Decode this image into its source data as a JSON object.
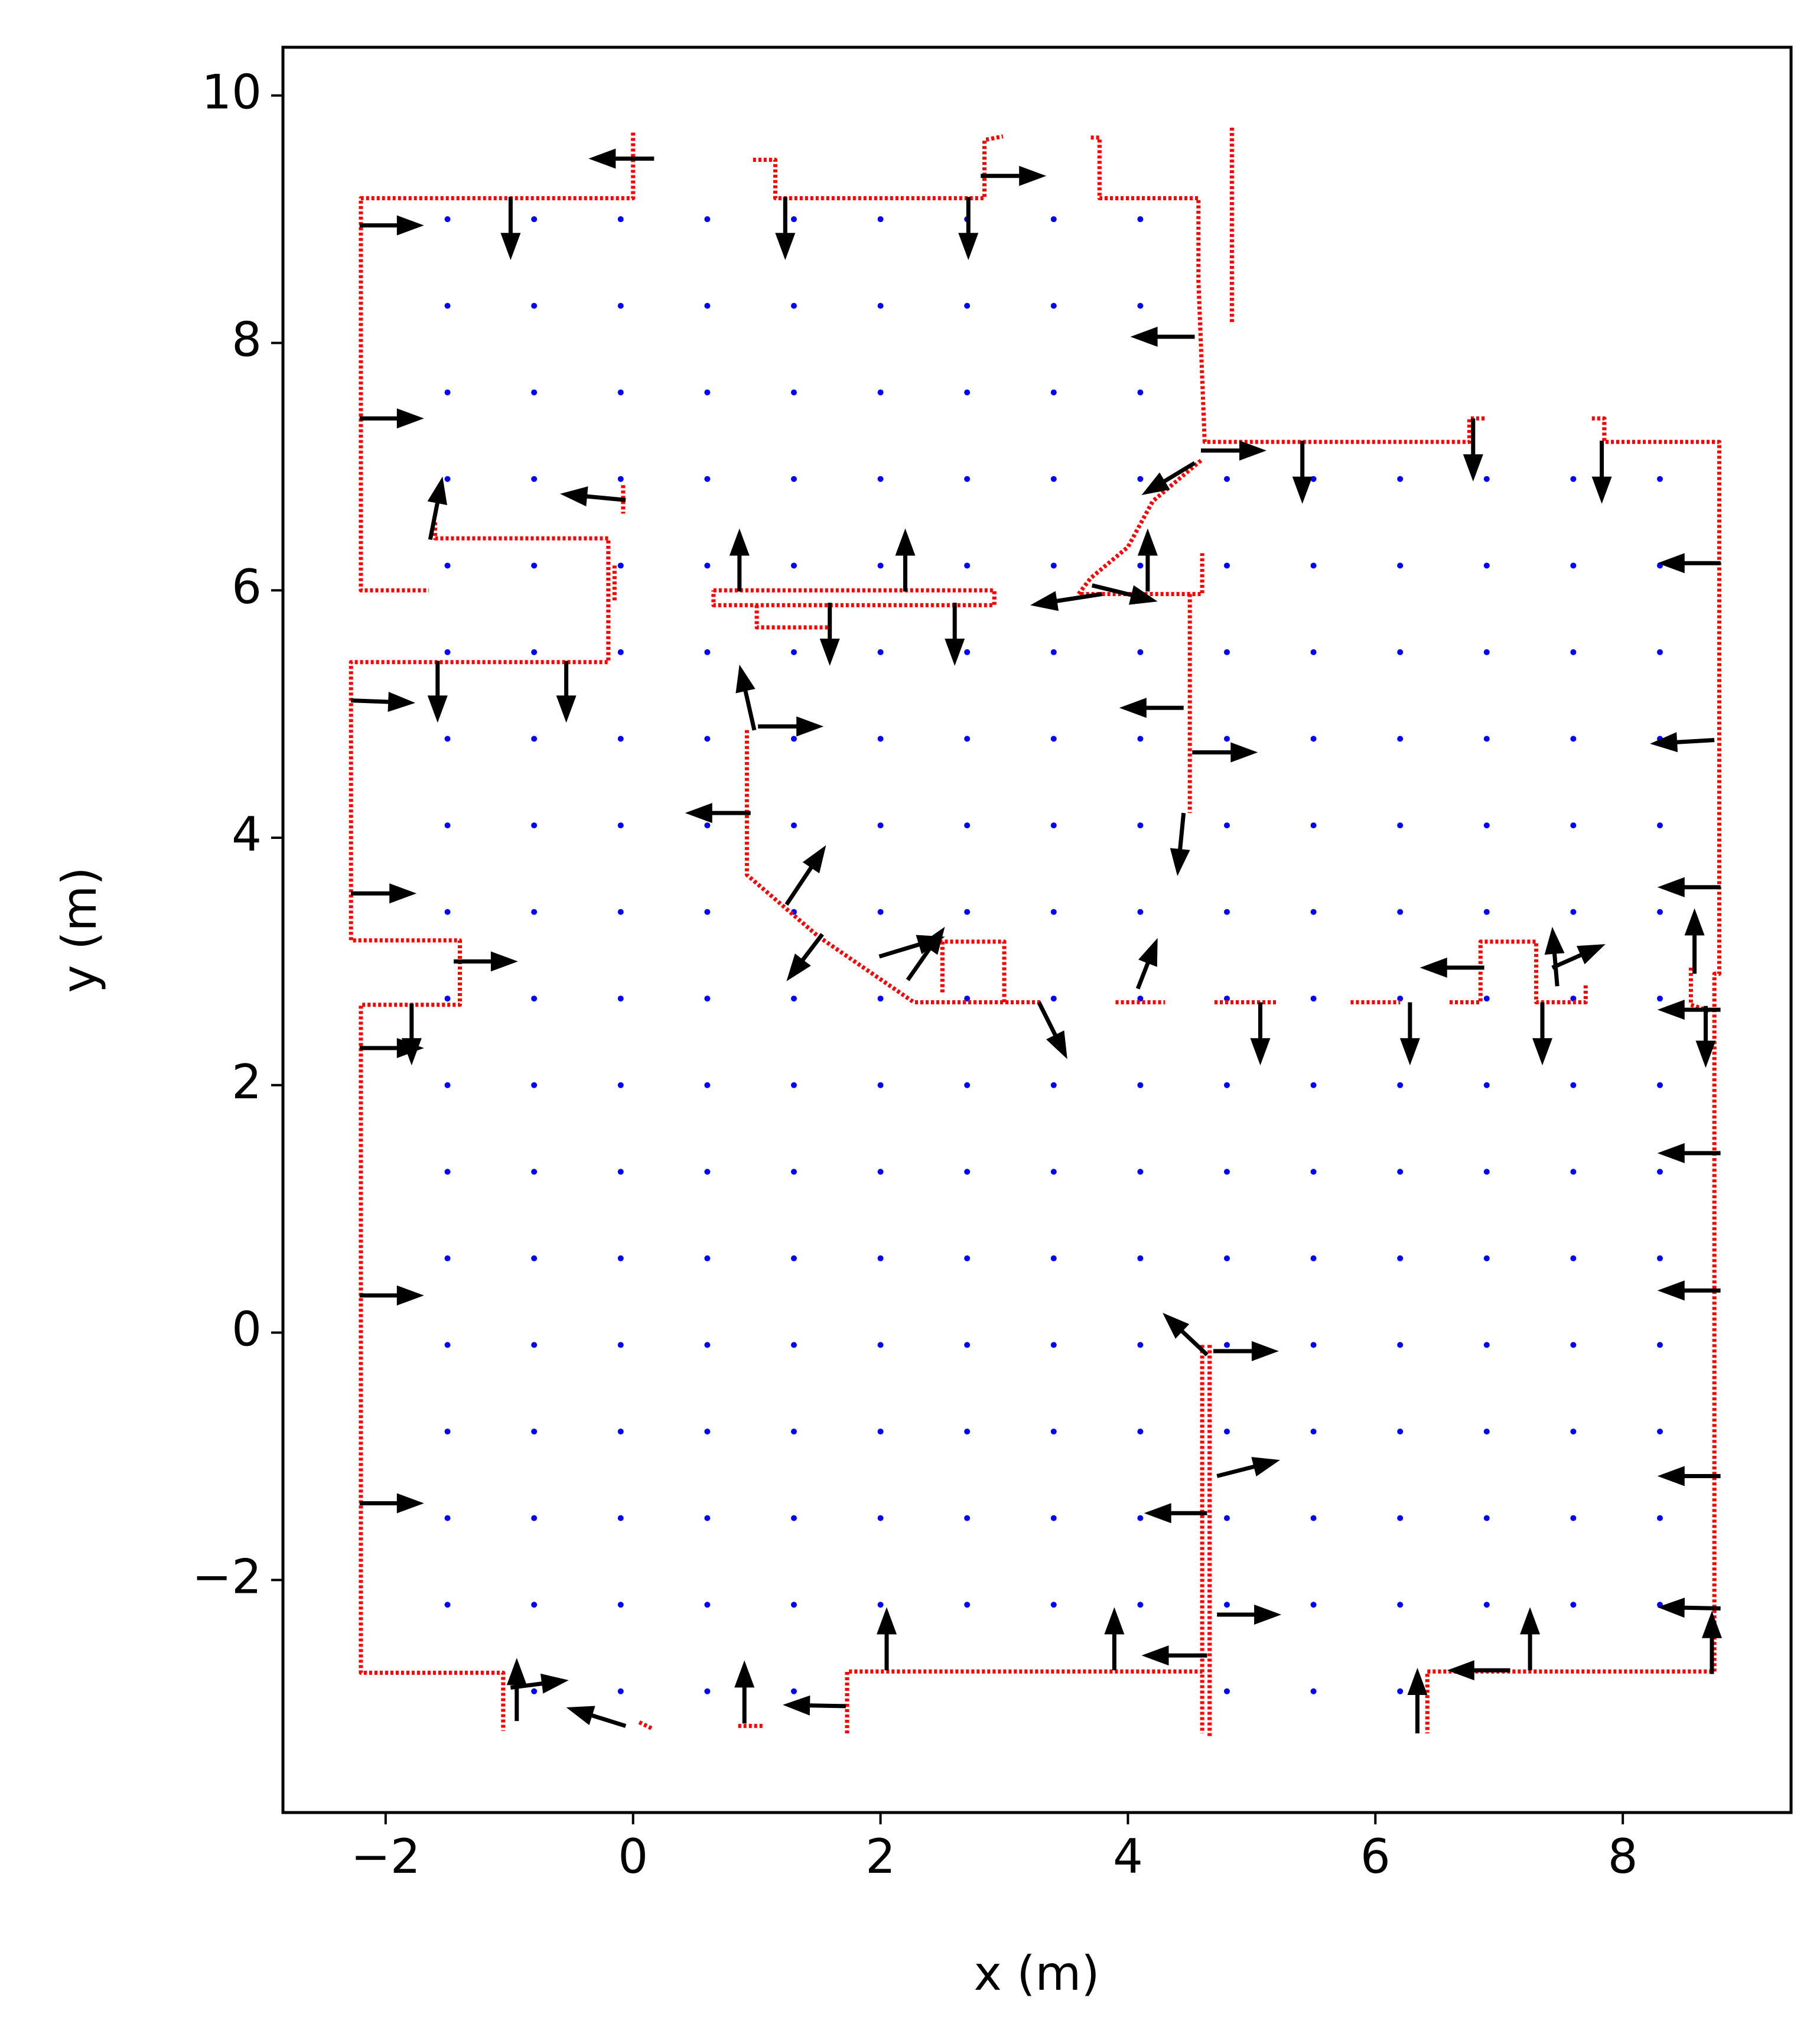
{
  "chart_data": {
    "type": "scatter",
    "xlabel": "x (m)",
    "ylabel": "y (m)",
    "xlim": [
      -2.83,
      9.36
    ],
    "ylim": [
      -3.88,
      10.39
    ],
    "xticks": [
      {
        "value": -2,
        "label": "−2"
      },
      0,
      2,
      4,
      6,
      8
    ],
    "yticks": [
      {
        "value": -2,
        "label": "−2"
      },
      0,
      2,
      4,
      6,
      8,
      10
    ],
    "series": [
      {
        "type": "grid",
        "color": "#0000ff",
        "rows": [
          {
            "y": 9.0,
            "x": [
              -1.5,
              -0.8,
              -0.1,
              0.6,
              1.3,
              2.0,
              2.7,
              3.4,
              4.1
            ]
          },
          {
            "y": 8.3,
            "x": [
              -1.5,
              -0.8,
              -0.1,
              0.6,
              1.3,
              2.0,
              2.7,
              3.4,
              4.1
            ]
          },
          {
            "y": 7.6,
            "x": [
              -1.5,
              -0.8,
              -0.1,
              0.6,
              1.3,
              2.0,
              2.7,
              3.4,
              4.1
            ]
          },
          {
            "y": 6.9,
            "x": [
              -1.5,
              -0.8,
              -0.1,
              0.6,
              1.3,
              2.0,
              2.7,
              3.4,
              4.1,
              4.8,
              5.5,
              6.2,
              6.9,
              7.6,
              8.3
            ]
          },
          {
            "y": 6.2,
            "x": [
              -1.5,
              -0.8,
              -0.1,
              0.6,
              1.3,
              2.0,
              2.7,
              3.4,
              4.1,
              4.8,
              5.5,
              6.2,
              6.9,
              7.6,
              8.3
            ]
          },
          {
            "y": 5.5,
            "x": [
              -1.5,
              -0.8,
              -0.1,
              0.6,
              1.3,
              2.0,
              2.7,
              3.4,
              4.1,
              4.8,
              5.5,
              6.2,
              6.9,
              7.6,
              8.3
            ]
          },
          {
            "y": 4.8,
            "x": [
              -1.5,
              -0.8,
              -0.1,
              0.6,
              1.3,
              2.0,
              2.7,
              3.4,
              4.1,
              4.8,
              5.5,
              6.2,
              6.9,
              7.6,
              8.3
            ]
          },
          {
            "y": 4.1,
            "x": [
              -1.5,
              -0.8,
              -0.1,
              0.6,
              1.3,
              2.0,
              2.7,
              3.4,
              4.1,
              4.8,
              5.5,
              6.2,
              6.9,
              7.6,
              8.3
            ]
          },
          {
            "y": 3.4,
            "x": [
              -1.5,
              -0.8,
              -0.1,
              0.6,
              1.3,
              2.0,
              2.7,
              3.4,
              4.1,
              4.8,
              5.5,
              6.2,
              6.9,
              7.6,
              8.3
            ]
          },
          {
            "y": 2.7,
            "x": [
              -1.5,
              -0.8,
              -0.1,
              0.6,
              1.3,
              2.0,
              2.7,
              3.4,
              4.1,
              4.8,
              5.5,
              6.2,
              6.9,
              7.6,
              8.3
            ]
          },
          {
            "y": 2.0,
            "x": [
              -1.5,
              -0.8,
              -0.1,
              0.6,
              1.3,
              2.0,
              2.7,
              3.4,
              4.1,
              4.8,
              5.5,
              6.2,
              6.9,
              7.6,
              8.3
            ]
          },
          {
            "y": 1.3,
            "x": [
              -1.5,
              -0.8,
              -0.1,
              0.6,
              1.3,
              2.0,
              2.7,
              3.4,
              4.1,
              4.8,
              5.5,
              6.2,
              6.9,
              7.6,
              8.3
            ]
          },
          {
            "y": 0.6,
            "x": [
              -1.5,
              -0.8,
              -0.1,
              0.6,
              1.3,
              2.0,
              2.7,
              3.4,
              4.1,
              4.8,
              5.5,
              6.2,
              6.9,
              7.6,
              8.3
            ]
          },
          {
            "y": -0.1,
            "x": [
              -1.5,
              -0.8,
              -0.1,
              0.6,
              1.3,
              2.0,
              2.7,
              3.4,
              4.1,
              4.8,
              5.5,
              6.2,
              6.9,
              7.6,
              8.3
            ]
          },
          {
            "y": -0.8,
            "x": [
              -1.5,
              -0.8,
              -0.1,
              0.6,
              1.3,
              2.0,
              2.7,
              3.4,
              4.1,
              4.8,
              5.5,
              6.2,
              6.9,
              7.6,
              8.3
            ]
          },
          {
            "y": -1.5,
            "x": [
              -1.5,
              -0.8,
              -0.1,
              0.6,
              1.3,
              2.0,
              2.7,
              3.4,
              4.1,
              4.8,
              5.5,
              6.2,
              6.9,
              7.6,
              8.3
            ]
          },
          {
            "y": -2.2,
            "x": [
              -1.5,
              -0.8,
              -0.1,
              0.6,
              1.3,
              2.0,
              2.7,
              3.4,
              4.1,
              4.8,
              5.5,
              6.2,
              6.9,
              7.6,
              8.3
            ]
          },
          {
            "y": -2.9,
            "x": [
              -0.8,
              -0.1,
              0.6,
              1.3,
              4.8,
              5.5,
              6.2
            ]
          }
        ]
      },
      {
        "type": "line",
        "color": "#ff0000",
        "x": [
          0.0,
          0.0,
          -2.2,
          -2.2,
          -1.65,
          null,
          -1.6,
          -1.6,
          -0.2,
          -0.2,
          -2.28,
          -2.28,
          -1.4,
          -1.4,
          -2.2,
          -2.2,
          -1.05,
          -1.05,
          null,
          -0.08,
          -0.08,
          null,
          -0.15,
          -0.15,
          null,
          0.97,
          1.15,
          1.15,
          2.84,
          2.84,
          2.99,
          null,
          3.7,
          3.77,
          3.77,
          4.57,
          4.57,
          4.62,
          6.76,
          6.76,
          6.9,
          null,
          7.75,
          7.85,
          7.85,
          8.78,
          8.78,
          8.74,
          8.74,
          6.42,
          6.42,
          null,
          4.84,
          4.84,
          null,
          4.59,
          4.2,
          4.0,
          3.7,
          3.6,
          4.6,
          4.6,
          null,
          4.5,
          4.5,
          null,
          0.65,
          2.92,
          2.92,
          0.65,
          0.65,
          null,
          1.0,
          1.0,
          1.6,
          null,
          0.92,
          0.92,
          1.5,
          2.27,
          3.3,
          null,
          2.5,
          2.5,
          3.0,
          3.0,
          null,
          3.9,
          4.3,
          null,
          4.7,
          5.2,
          null,
          5.8,
          6.2,
          null,
          6.6,
          6.85,
          6.85,
          7.3,
          7.3,
          7.7,
          7.7,
          null,
          8.55,
          8.55,
          8.7,
          null,
          1.73,
          1.73,
          4.6,
          null,
          4.6,
          4.6,
          null,
          4.66,
          4.66,
          null,
          0.05,
          0.15,
          null,
          0.85,
          1.05
        ],
        "y": [
          9.7,
          9.17,
          9.17,
          6.0,
          6.0,
          null,
          6.55,
          6.42,
          6.42,
          5.42,
          5.42,
          3.17,
          3.17,
          2.65,
          2.65,
          -2.75,
          -2.75,
          -3.22,
          null,
          6.85,
          6.62,
          null,
          6.2,
          5.9,
          null,
          9.48,
          9.48,
          9.17,
          9.17,
          9.64,
          9.67,
          null,
          9.66,
          9.66,
          9.17,
          9.17,
          8.5,
          7.2,
          7.2,
          7.39,
          7.39,
          null,
          7.39,
          7.39,
          7.2,
          7.2,
          2.9,
          2.9,
          -2.74,
          -2.74,
          -3.24,
          null,
          9.74,
          8.16,
          null,
          7.05,
          6.72,
          6.35,
          6.1,
          5.97,
          5.97,
          6.3,
          null,
          5.97,
          4.2,
          null,
          6.0,
          6.0,
          5.88,
          5.88,
          6.0,
          null,
          5.88,
          5.7,
          5.7,
          null,
          4.87,
          3.7,
          3.2,
          2.67,
          2.67,
          null,
          2.75,
          3.16,
          3.16,
          2.67,
          null,
          2.67,
          2.67,
          null,
          2.67,
          2.67,
          null,
          2.67,
          2.67,
          null,
          2.67,
          2.67,
          3.16,
          3.16,
          2.67,
          2.67,
          2.82,
          null,
          2.95,
          2.65,
          2.6,
          null,
          -3.24,
          -2.74,
          -2.74,
          null,
          -0.1,
          -3.24,
          null,
          -0.1,
          -3.28,
          null,
          -3.15,
          -3.2,
          null,
          -3.18,
          -3.18
        ]
      },
      {
        "type": "quiver",
        "color": "#000000",
        "x": [
          -2.21,
          -0.99,
          0.17,
          1.23,
          2.71,
          2.81,
          4.54,
          -2.21,
          4.59,
          4.54,
          5.41,
          6.79,
          7.83,
          -0.06,
          -1.64,
          0.86,
          2.2,
          4.16,
          8.79,
          1.59,
          2.6,
          3.79,
          3.71,
          -2.28,
          -1.58,
          -0.54,
          0.98,
          1.01,
          4.45,
          4.52,
          0.95,
          4.45,
          8.74,
          -2.28,
          1.24,
          1.53,
          8.79,
          8.58,
          2.22,
          1.99,
          -1.45,
          6.88,
          7.43,
          7.47,
          4.08,
          3.28,
          5.07,
          6.28,
          7.35,
          -1.79,
          -2.21,
          8.79,
          8.67,
          8.79,
          -2.21,
          8.79,
          4.69,
          4.64,
          4.72,
          4.64,
          8.79,
          -2.21,
          4.72,
          8.79,
          4.64,
          2.05,
          3.89,
          7.25,
          7.09,
          8.72,
          -0.94,
          -0.99,
          -0.06,
          0.9,
          1.72,
          6.34
        ],
        "y": [
          8.95,
          9.18,
          9.49,
          9.18,
          9.18,
          9.35,
          8.05,
          7.39,
          7.13,
          7.03,
          7.21,
          7.39,
          7.21,
          6.73,
          6.41,
          5.99,
          5.99,
          5.99,
          6.22,
          5.9,
          5.9,
          5.97,
          6.04,
          5.11,
          5.43,
          5.43,
          4.87,
          4.9,
          5.05,
          4.69,
          4.2,
          4.2,
          4.79,
          3.55,
          3.46,
          3.22,
          3.6,
          2.9,
          2.85,
          3.04,
          3.0,
          2.95,
          2.95,
          2.8,
          2.78,
          2.67,
          2.67,
          2.67,
          2.67,
          2.66,
          2.3,
          2.61,
          2.64,
          1.45,
          0.3,
          0.34,
          -0.15,
          -0.18,
          -1.16,
          -1.46,
          -1.16,
          -1.38,
          -2.28,
          -2.23,
          -2.61,
          -2.73,
          -2.73,
          -2.73,
          -2.73,
          -2.76,
          -3.14,
          -2.87,
          -3.18,
          -3.16,
          -3.02,
          -3.24
        ],
        "u": [
          0.52,
          0,
          -0.53,
          0,
          0,
          0.53,
          -0.52,
          0.52,
          0.53,
          -0.43,
          0,
          0,
          0,
          -0.53,
          0.1,
          0,
          0,
          0,
          -0.51,
          0,
          0,
          -0.58,
          0.53,
          0.52,
          0,
          0,
          -0.12,
          0.53,
          -0.52,
          0.53,
          -0.53,
          -0.05,
          -0.52,
          0.53,
          0.32,
          -0.29,
          -0.51,
          0,
          0.3,
          0.53,
          0.52,
          -0.52,
          0.43,
          -0.04,
          0.16,
          0.23,
          0,
          0,
          0,
          0,
          0.52,
          -0.51,
          0,
          -0.51,
          0.52,
          -0.51,
          0.53,
          -0.36,
          0.51,
          -0.51,
          -0.51,
          0.52,
          0.52,
          -0.51,
          -0.53,
          0,
          0,
          0,
          -0.51,
          0,
          0,
          0.47,
          -0.48,
          0,
          -0.51,
          0
        ],
        "v": [
          0,
          -0.51,
          0,
          -0.51,
          -0.51,
          0,
          0,
          0,
          0,
          -0.26,
          -0.51,
          -0.51,
          -0.51,
          0.05,
          0.51,
          0.51,
          0.51,
          0.51,
          0,
          -0.51,
          -0.51,
          -0.09,
          -0.13,
          -0.02,
          -0.5,
          -0.5,
          0.53,
          0,
          0,
          0,
          0,
          -0.51,
          -0.03,
          0,
          0.48,
          -0.38,
          0,
          0.53,
          0.43,
          0.16,
          0,
          0,
          0.19,
          0.48,
          0.41,
          -0.46,
          -0.51,
          -0.51,
          -0.51,
          -0.5,
          0,
          0,
          -0.5,
          0,
          0,
          0,
          0,
          0.34,
          0.13,
          0,
          0,
          0,
          0,
          0.01,
          0,
          0.51,
          0.51,
          0.51,
          0,
          0.51,
          0.51,
          0.06,
          0.15,
          0.51,
          0.01,
          0.53
        ]
      }
    ]
  }
}
